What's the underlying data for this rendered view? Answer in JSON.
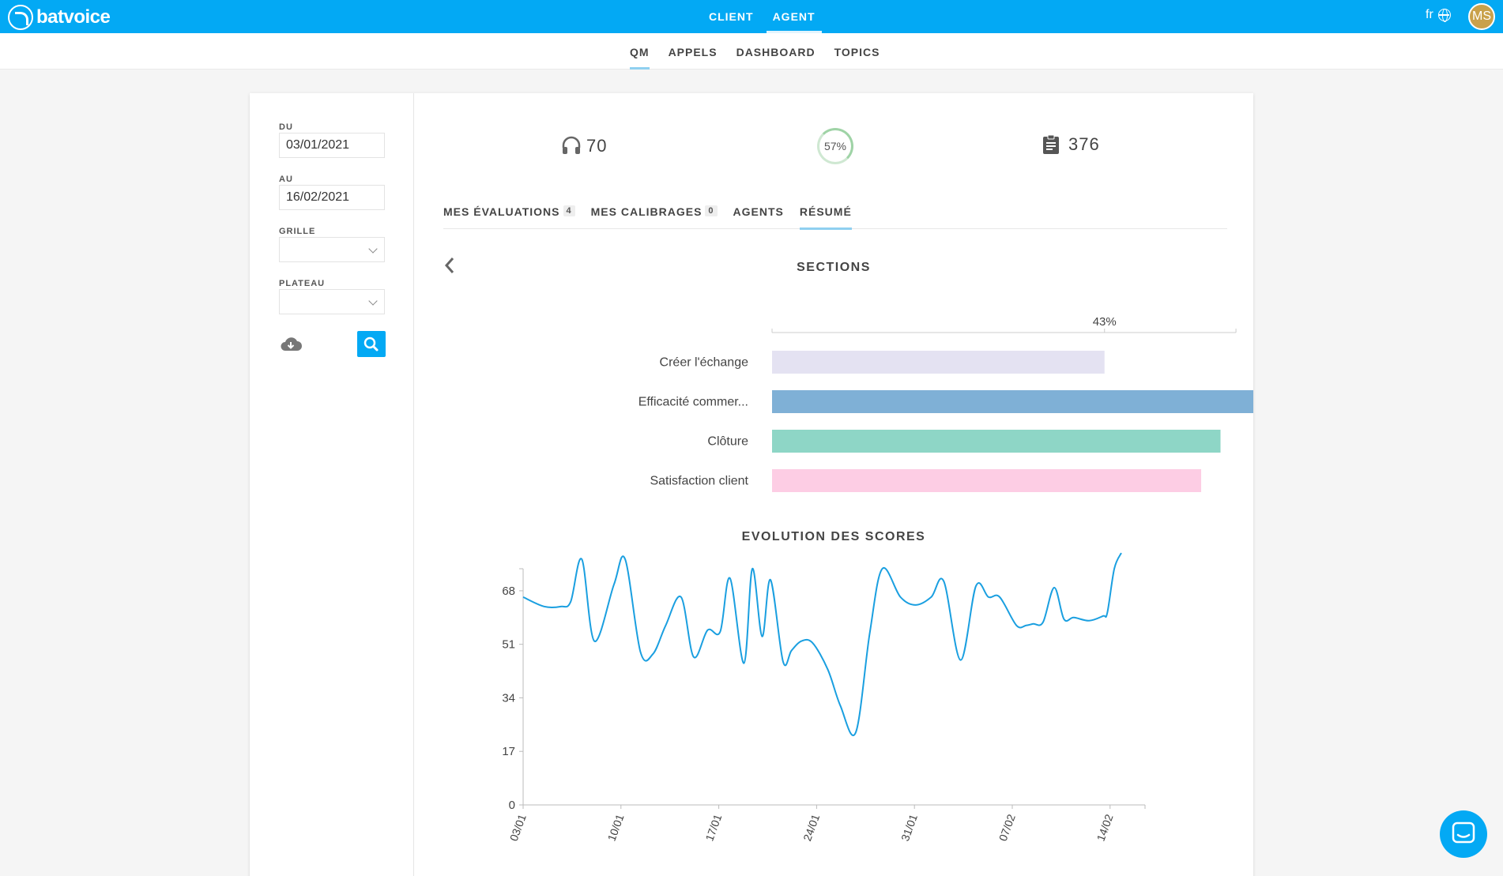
{
  "app": {
    "logo_text": "batvoice",
    "avatar_initials": "MS",
    "lang": "fr"
  },
  "top_nav": [
    {
      "label": "CLIENT",
      "active": false
    },
    {
      "label": "AGENT",
      "active": true
    }
  ],
  "sub_nav": [
    {
      "label": "QM",
      "active": true
    },
    {
      "label": "APPELS",
      "active": false
    },
    {
      "label": "DASHBOARD",
      "active": false
    },
    {
      "label": "TOPICS",
      "active": false
    }
  ],
  "filters": {
    "from_label": "DU",
    "from_value": "03/01/2021",
    "to_label": "AU",
    "to_value": "16/02/2021",
    "grid_label": "GRILLE",
    "grid_value": "",
    "plateau_label": "PLATEAU",
    "plateau_value": ""
  },
  "stats": {
    "calls": "70",
    "score": "57%",
    "evaluations": "376"
  },
  "tabs": [
    {
      "label": "MES ÉVALUATIONS",
      "badge": "4",
      "active": false
    },
    {
      "label": "MES CALIBRAGES",
      "badge": "0",
      "active": false
    },
    {
      "label": "AGENTS",
      "badge": "",
      "active": false
    },
    {
      "label": "RÉSUMÉ",
      "badge": "",
      "active": true
    }
  ],
  "sections_title": "SECTIONS",
  "evolution_title": "EVOLUTION DES SCORES",
  "icons": [
    "headset-icon",
    "clipboard-icon",
    "cloud-download-icon",
    "search-icon",
    "chevron-left-icon",
    "globe-icon",
    "chat-icon"
  ],
  "colors": {
    "accent": "#03a9f4",
    "line": "#1a9fe0"
  },
  "chart_data": [
    {
      "type": "bar",
      "orientation": "horizontal",
      "categories": [
        "Créer l'échange",
        "Efficacité commer...",
        "Clôture",
        "Satisfaction client"
      ],
      "values": [
        43,
        62.5,
        58,
        55.5
      ],
      "colors": [
        "#e4e2f2",
        "#7fb0d6",
        "#8ed6c6",
        "#fdcde4"
      ],
      "hover_label": "43%",
      "xlim": [
        0,
        65
      ]
    },
    {
      "type": "line",
      "title": "EVOLUTION DES SCORES",
      "ylim": [
        0,
        75
      ],
      "yticks": [
        0,
        17,
        34,
        51,
        68
      ],
      "xtick_labels": [
        "03/01",
        "10/01",
        "17/01",
        "24/01",
        "31/01",
        "07/02",
        "14/02"
      ],
      "x_range_days": [
        0,
        44.5
      ],
      "series": [
        {
          "x": [
            0,
            1.5,
            2.7,
            3.4,
            4.2,
            5.1,
            6.5,
            7.3,
            8.4,
            9.3,
            10.2,
            11.3,
            12.2,
            13.2,
            14.1,
            14.8,
            15.8,
            16.4,
            17.1,
            17.7,
            18.6,
            19.2,
            19.9,
            20.7,
            21.8,
            22.7,
            23.8,
            24.8,
            25.7,
            27.0,
            28.1,
            29.2,
            30.1,
            31.3,
            32.4,
            33.3,
            34.1,
            35.3,
            36.0,
            36.5,
            37.2,
            38.0,
            38.7,
            39.4,
            40.5,
            41.5,
            41.8,
            42.3,
            42.8
          ],
          "y": [
            66,
            63,
            63,
            64.5,
            78,
            52,
            70,
            78,
            48.5,
            48,
            57,
            66,
            47,
            55.5,
            55,
            72,
            45,
            75,
            53.5,
            71.5,
            45.5,
            49,
            52,
            51.5,
            43,
            31.5,
            23,
            54.5,
            75,
            66,
            63.5,
            66,
            71,
            46,
            69.5,
            66,
            66,
            57,
            57,
            57.5,
            58,
            69,
            59,
            59.5,
            58.5,
            60,
            61,
            75,
            80
          ]
        }
      ]
    }
  ]
}
